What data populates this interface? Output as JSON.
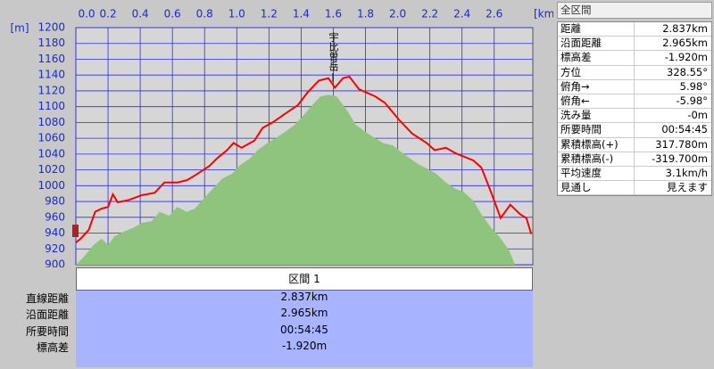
{
  "chart_data": {
    "type": "line",
    "x_unit": "[km]",
    "y_unit": "[m]",
    "annotation": "宇比曽岳",
    "xlim": [
      0,
      2.84
    ],
    "ylim": [
      900,
      1200
    ],
    "xticks": [
      {
        "value": 0,
        "label": "0.0"
      },
      0.2,
      0.4,
      0.6,
      0.8,
      {
        "value": 1,
        "label": "1.0"
      },
      1.2,
      1.4,
      1.6,
      1.8,
      {
        "value": 2,
        "label": "2.0"
      },
      2.2,
      2.4,
      2.6
    ],
    "yticks": [
      900,
      920,
      940,
      960,
      980,
      1000,
      1020,
      1040,
      1060,
      1080,
      1100,
      1120,
      1140,
      1160,
      1180,
      1200
    ],
    "grid": true,
    "series": [
      {
        "type": "area",
        "color": "#8fc47f",
        "x": [
          0,
          0.05,
          0.11,
          0.16,
          0.2,
          0.24,
          0.3,
          0.36,
          0.41,
          0.47,
          0.52,
          0.58,
          0.63,
          0.69,
          0.74,
          0.8,
          0.86,
          0.91,
          0.97,
          1.02,
          1.08,
          1.13,
          1.19,
          1.24,
          1.3,
          1.36,
          1.41,
          1.47,
          1.52,
          1.57,
          1.62,
          1.69,
          1.74,
          1.8,
          1.86,
          1.91,
          1.97,
          2.02,
          2.08,
          2.13,
          2.19,
          2.24,
          2.3,
          2.36,
          2.41,
          2.47,
          2.52,
          2.58,
          2.63,
          2.69,
          2.73
        ],
        "values": [
          900,
          910,
          925,
          933,
          925,
          936,
          942,
          947,
          953,
          955,
          967,
          962,
          973,
          967,
          971,
          985,
          998,
          1009,
          1015,
          1026,
          1034,
          1045,
          1054,
          1060,
          1068,
          1077,
          1088,
          1102,
          1113,
          1115,
          1113,
          1094,
          1077,
          1068,
          1060,
          1054,
          1051,
          1043,
          1034,
          1027,
          1021,
          1015,
          1004,
          996,
          992,
          981,
          964,
          947,
          936,
          919,
          900
        ]
      },
      {
        "type": "line",
        "color": "#ff0000",
        "x": [
          0,
          0.03,
          0.08,
          0.12,
          0.16,
          0.2,
          0.23,
          0.26,
          0.33,
          0.41,
          0.49,
          0.55,
          0.63,
          0.69,
          0.74,
          0.83,
          0.88,
          0.94,
          0.98,
          1.03,
          1.11,
          1.16,
          1.23,
          1.3,
          1.38,
          1.44,
          1.51,
          1.57,
          1.61,
          1.66,
          1.7,
          1.76,
          1.86,
          1.92,
          2.01,
          2.09,
          2.18,
          2.23,
          2.3,
          2.36,
          2.47,
          2.52,
          2.58,
          2.64,
          2.7,
          2.76,
          2.8,
          2.83
        ],
        "values": [
          928,
          933,
          944,
          967,
          971,
          973,
          989,
          979,
          982,
          988,
          991,
          1004,
          1004,
          1007,
          1013,
          1025,
          1035,
          1045,
          1054,
          1048,
          1057,
          1073,
          1081,
          1091,
          1102,
          1118,
          1133,
          1136,
          1124,
          1136,
          1138,
          1122,
          1113,
          1105,
          1083,
          1066,
          1054,
          1045,
          1048,
          1041,
          1032,
          1023,
          992,
          959,
          976,
          964,
          959,
          939
        ]
      }
    ]
  },
  "summary": {
    "title": "全区間",
    "rows": [
      [
        "距離",
        "2.837km"
      ],
      [
        "沿面距離",
        "2.965km"
      ],
      [
        "標高差",
        "-1.920m"
      ],
      [
        "方位",
        "328.55°"
      ],
      [
        "俯角→",
        "5.98°"
      ],
      [
        "俯角←",
        "-5.98°"
      ],
      [
        "洗み量",
        "-0m"
      ],
      [
        "所要時間",
        "00:54:45"
      ],
      [
        "累積標高(+)",
        "317.780m"
      ],
      [
        "累積標高(-)",
        "-319.700m"
      ],
      [
        "平均速度",
        "3.1km/h"
      ],
      [
        "見通し",
        "見えます"
      ]
    ]
  },
  "section": {
    "title": "区間 1",
    "rows": [
      [
        "直線距離",
        "2.837km"
      ],
      [
        "沿面距離",
        "2.965km"
      ],
      [
        "所要時間",
        "00:54:45"
      ],
      [
        "標高差",
        "-1.920m"
      ]
    ]
  }
}
